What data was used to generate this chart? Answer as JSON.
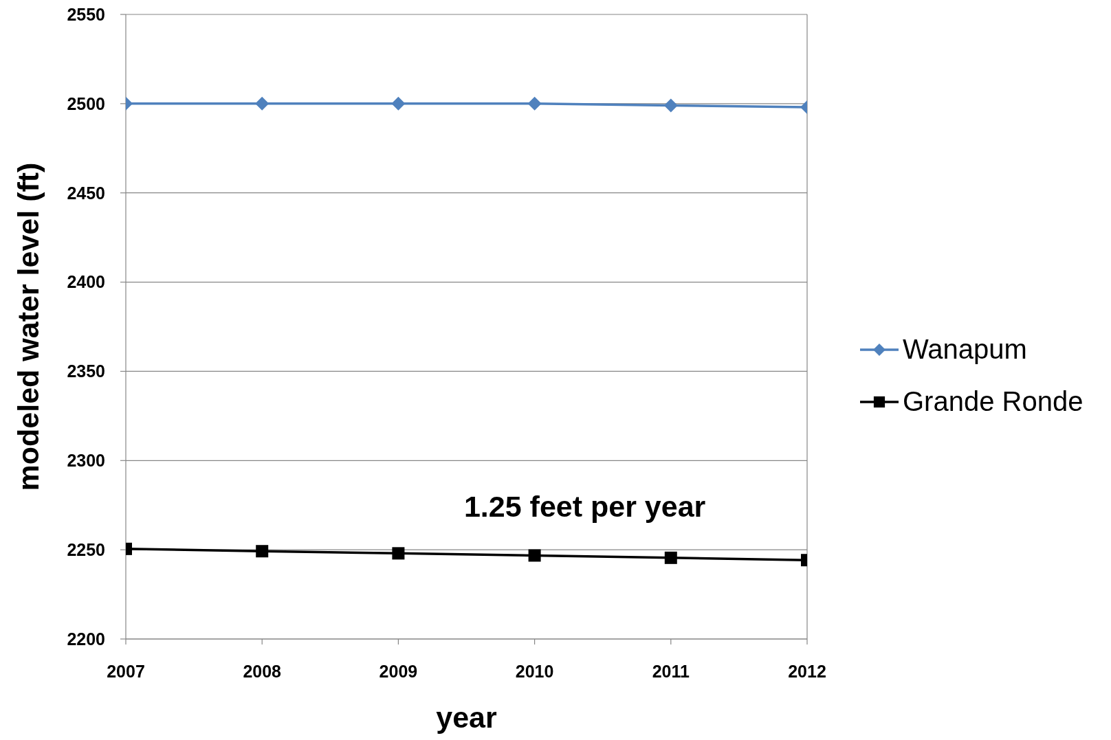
{
  "chart_data": {
    "type": "line",
    "xlabel": "year",
    "ylabel": "modeled water level (ft)",
    "x": [
      2007,
      2008,
      2009,
      2010,
      2011,
      2012
    ],
    "series": [
      {
        "name": "Wanapum",
        "color": "#4f81bd",
        "marker": "diamond",
        "values": [
          2500,
          2500,
          2500,
          2500,
          2499,
          2498
        ]
      },
      {
        "name": "Grande Ronde",
        "color": "#000000",
        "marker": "square",
        "values": [
          2250.5,
          2249.2,
          2248,
          2246.8,
          2245.5,
          2244.2
        ]
      }
    ],
    "xlim": [
      2007,
      2012
    ],
    "xticks": [
      2007,
      2008,
      2009,
      2010,
      2011,
      2012
    ],
    "ylim": [
      2200,
      2550
    ],
    "yticks": [
      2200,
      2250,
      2300,
      2350,
      2400,
      2450,
      2500,
      2550
    ],
    "grid": "y",
    "legend": "right",
    "line_style": "solid",
    "annotations": [
      "1.25 feet per year"
    ]
  }
}
